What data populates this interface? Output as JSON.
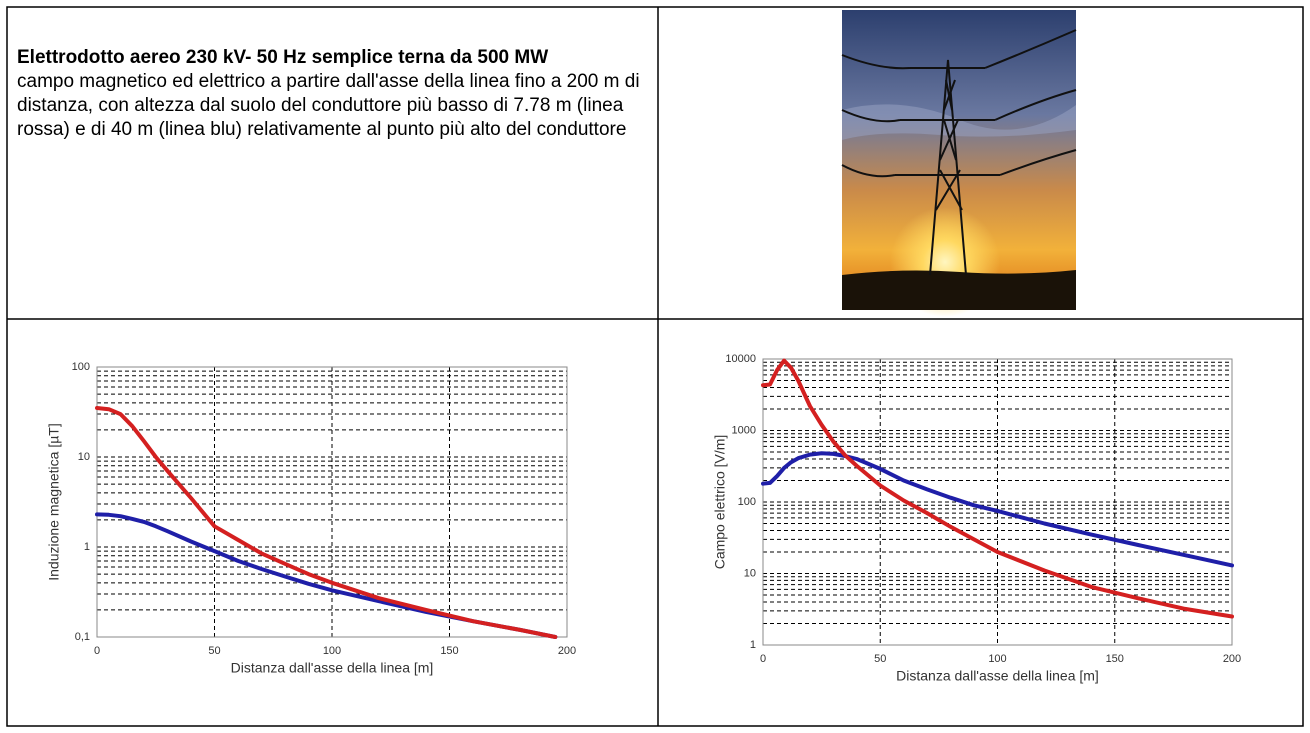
{
  "text": {
    "title": "Elettrodotto aereo 230 kV- 50 Hz semplice terna da 500 MW",
    "body": "campo magnetico ed elettrico a partire dall'asse della linea fino a 200 m di distanza, con altezza dal suolo del conduttore più basso di 7.78 m (linea rossa) e di 40 m (linea blu) relativamente al punto più alto del conduttore"
  },
  "chart_data": [
    {
      "type": "line",
      "x_label": "Distanza dall'asse della linea [m]",
      "y_label": "Induzione magnetica [µT]",
      "log_y": true,
      "grid": true,
      "xlim": [
        0,
        200
      ],
      "xticks": [
        0,
        50,
        100,
        150,
        200
      ],
      "ylim": [
        0.1,
        100
      ],
      "yticks": [
        {
          "value": 0.1,
          "label": "0,1"
        },
        1,
        10,
        100
      ],
      "x": [
        0,
        5,
        10,
        15,
        20,
        25,
        30,
        40,
        50,
        60,
        70,
        80,
        90,
        100,
        120,
        140,
        160,
        180,
        195
      ],
      "series": [
        {
          "color": "#1f1fa8",
          "values": [
            2.3,
            2.28,
            2.2,
            2.05,
            1.9,
            1.7,
            1.5,
            1.15,
            0.9,
            0.7,
            0.57,
            0.47,
            0.39,
            0.33,
            0.25,
            0.19,
            0.15,
            0.12,
            0.1
          ]
        },
        {
          "color": "#d42020",
          "values": [
            35,
            34,
            30,
            22,
            15,
            10,
            7,
            3.5,
            1.7,
            1.2,
            0.85,
            0.65,
            0.5,
            0.4,
            0.27,
            0.2,
            0.15,
            0.12,
            0.1
          ]
        }
      ]
    },
    {
      "type": "line",
      "x_label": "Distanza dall'asse della linea [m]",
      "y_label": "Campo elettrico [V/m]",
      "log_y": true,
      "grid": true,
      "xlim": [
        0,
        200
      ],
      "xticks": [
        0,
        50,
        100,
        150,
        200
      ],
      "ylim": [
        1,
        10000
      ],
      "yticks": [
        1,
        10,
        100,
        1000,
        10000
      ],
      "x": [
        0,
        3,
        6,
        9,
        12,
        15,
        20,
        25,
        30,
        35,
        40,
        50,
        60,
        70,
        80,
        90,
        100,
        120,
        140,
        160,
        180,
        200
      ],
      "series": [
        {
          "color": "#1f1fa8",
          "values": [
            180,
            185,
            230,
            300,
            360,
            410,
            460,
            480,
            470,
            440,
            400,
            290,
            200,
            150,
            115,
            90,
            75,
            50,
            35,
            25,
            18,
            13
          ]
        },
        {
          "color": "#d42020",
          "values": [
            4300,
            4400,
            7000,
            9500,
            7500,
            5000,
            2200,
            1200,
            700,
            450,
            320,
            170,
            105,
            70,
            45,
            30,
            20,
            11,
            6.5,
            4.5,
            3.2,
            2.5
          ]
        }
      ]
    }
  ]
}
